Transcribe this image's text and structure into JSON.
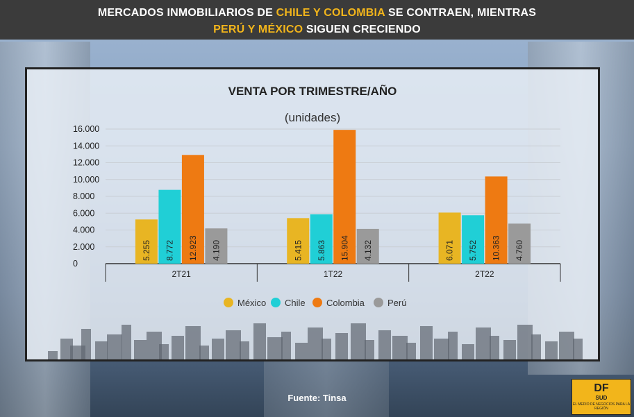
{
  "header": {
    "line1_pre": "MERCADOS INMOBILIARIOS DE ",
    "line1_hl": "CHILE Y COLOMBIA",
    "line1_post": " SE CONTRAEN, MIENTRAS",
    "line2_hl": "PERÚ Y MÉXICO",
    "line2_post": " SIGUEN CRECIENDO"
  },
  "chart_data": {
    "type": "bar",
    "title": "VENTA POR TRIMESTRE/AÑO",
    "subtitle": "(unidades)",
    "categories": [
      "2T21",
      "1T22",
      "2T22"
    ],
    "series": [
      {
        "name": "México",
        "color": "#e8b523",
        "values": [
          5255,
          5415,
          6071
        ],
        "labels": [
          "5.255",
          "5.415",
          "6.071"
        ]
      },
      {
        "name": "Chile",
        "color": "#20cfd6",
        "values": [
          8772,
          5863,
          5752
        ],
        "labels": [
          "8.772",
          "5.863",
          "5.752"
        ]
      },
      {
        "name": "Colombia",
        "color": "#ee7a12",
        "values": [
          12923,
          15904,
          10363
        ],
        "labels": [
          "12.923",
          "15.904",
          "10.363"
        ]
      },
      {
        "name": "Perú",
        "color": "#9a9a9a",
        "values": [
          4190,
          4132,
          4760
        ],
        "labels": [
          "4.190",
          "4.132",
          "4.760"
        ]
      }
    ],
    "ylim": [
      0,
      16000
    ],
    "yticks": [
      0,
      2000,
      4000,
      6000,
      8000,
      10000,
      12000,
      14000,
      16000
    ],
    "ytick_labels": [
      "0",
      "2.000",
      "4.000",
      "6.000",
      "8.000",
      "10.000",
      "12.000",
      "14.000",
      "16.000"
    ],
    "grid": true,
    "legend": "bottom-center"
  },
  "footer": {
    "source": "Fuente: Tinsa"
  },
  "logo": {
    "text": "DF",
    "sub": "SUD",
    "tag": "EL MEDIO DE NEGOCIOS PARA LA REGIÓN"
  }
}
